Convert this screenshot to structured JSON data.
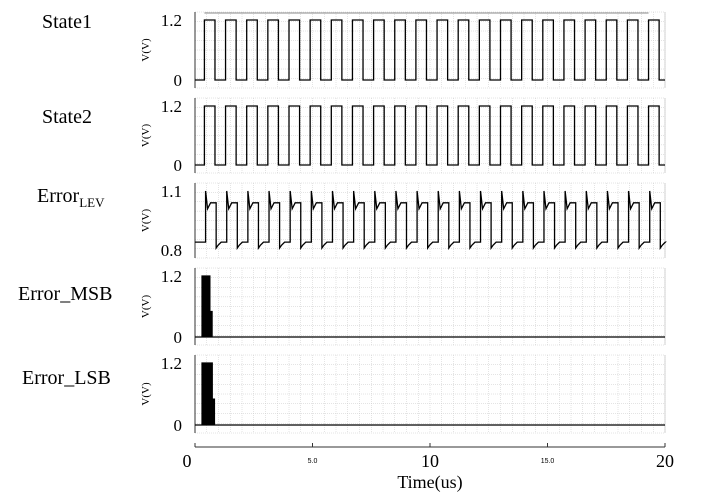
{
  "chart_data": [
    {
      "type": "line",
      "title": "State1",
      "ylabel": "V(V)",
      "yticks": [
        "1.2",
        "0"
      ],
      "ylim": [
        0,
        1.2
      ],
      "xlim": [
        0,
        20
      ],
      "x_unit": "us",
      "grid": true,
      "top_reference_line": 1.2,
      "waveform": "square",
      "low": 0,
      "high": 1.2,
      "edges": [
        0.4,
        0.85,
        1.3,
        1.75,
        2.2,
        2.65,
        3.1,
        3.55,
        4.0,
        4.45,
        4.9,
        5.35,
        5.8,
        6.25,
        6.7,
        7.15,
        7.6,
        8.05,
        8.5,
        8.95,
        9.4,
        9.85,
        10.3,
        10.75,
        11.2,
        11.65,
        12.1,
        12.55,
        13.0,
        13.45,
        13.9,
        14.35,
        14.8,
        15.25,
        15.7,
        16.15,
        16.6,
        17.05,
        17.5,
        17.95,
        18.4,
        18.85,
        19.3,
        19.75
      ]
    },
    {
      "type": "line",
      "title": "State2",
      "ylabel": "V(V)",
      "yticks": [
        "1.2",
        "0"
      ],
      "ylim": [
        0,
        1.2
      ],
      "xlim": [
        0,
        20
      ],
      "x_unit": "us",
      "grid": true,
      "waveform": "square",
      "low": 0,
      "high": 1.2,
      "edges": [
        0.4,
        0.85,
        1.3,
        1.75,
        2.2,
        2.65,
        3.1,
        3.55,
        4.0,
        4.45,
        4.9,
        5.35,
        5.8,
        6.25,
        6.7,
        7.15,
        7.6,
        8.05,
        8.5,
        8.95,
        9.4,
        9.85,
        10.3,
        10.75,
        11.2,
        11.65,
        12.1,
        12.55,
        13.0,
        13.45,
        13.9,
        14.35,
        14.8,
        15.25,
        15.7,
        16.15,
        16.6,
        17.05,
        17.5,
        17.95,
        18.4,
        18.85,
        19.3,
        19.75
      ]
    },
    {
      "type": "line",
      "title": "Error",
      "title_subscript": "LEV",
      "ylabel": "V(V)",
      "yticks": [
        "1.1",
        "0.8"
      ],
      "ylim": [
        0.8,
        1.1
      ],
      "xlim": [
        0,
        20
      ],
      "x_unit": "us",
      "grid": true,
      "waveform": "spiky",
      "low": 0.84,
      "high": 1.04,
      "spike_high": 1.1,
      "spike_low": 0.81,
      "edges": [
        0.45,
        0.9,
        1.35,
        1.8,
        2.25,
        2.7,
        3.15,
        3.6,
        4.05,
        4.5,
        4.95,
        5.4,
        5.85,
        6.3,
        6.75,
        7.2,
        7.65,
        8.1,
        8.55,
        9.0,
        9.45,
        9.9,
        10.35,
        10.8,
        11.25,
        11.7,
        12.15,
        12.6,
        13.05,
        13.5,
        13.95,
        14.4,
        14.85,
        15.3,
        15.75,
        16.2,
        16.65,
        17.1,
        17.55,
        18.0,
        18.45,
        18.9,
        19.35,
        19.8
      ]
    },
    {
      "type": "line",
      "title": "Error_MSB",
      "ylabel": "V(V)",
      "yticks": [
        "1.2",
        "0"
      ],
      "ylim": [
        0,
        1.2
      ],
      "xlim": [
        0,
        20
      ],
      "x_unit": "us",
      "grid": true,
      "waveform": "burst",
      "low": 0,
      "high": 1.2,
      "bursts": [
        {
          "x0": 0.3,
          "x1": 0.65,
          "level": 1.2
        },
        {
          "x0": 0.65,
          "x1": 0.72,
          "level": 0.5
        }
      ]
    },
    {
      "type": "line",
      "title": "Error_LSB",
      "ylabel": "V(V)",
      "yticks": [
        "1.2",
        "0"
      ],
      "ylim": [
        0,
        1.2
      ],
      "xlim": [
        0,
        20
      ],
      "x_unit": "us",
      "grid": true,
      "waveform": "burst",
      "low": 0,
      "high": 1.2,
      "bursts": [
        {
          "x0": 0.3,
          "x1": 0.75,
          "level": 1.2
        },
        {
          "x0": 0.75,
          "x1": 0.85,
          "level": 0.5
        }
      ]
    }
  ],
  "x_axis": {
    "label": "Time(us)",
    "ticks": [
      {
        "x": 0,
        "label": "0",
        "size": "big"
      },
      {
        "x": 5,
        "label": "5.0",
        "size": "small"
      },
      {
        "x": 10,
        "label": "10",
        "size": "big"
      },
      {
        "x": 15,
        "label": "15.0",
        "size": "small"
      },
      {
        "x": 20,
        "label": "20",
        "size": "big"
      }
    ]
  },
  "colors": {
    "trace": "#000000",
    "grid": "#c8c8c8",
    "axis": "#333333",
    "reference_line": "#888888"
  }
}
